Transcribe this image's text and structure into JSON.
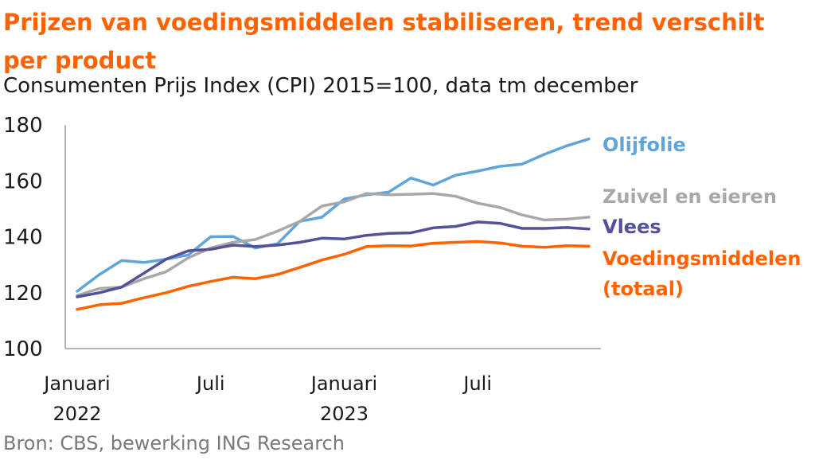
{
  "title": "Prijzen van voedingsmiddelen stabiliseren, trend verschilt per product",
  "subtitle": "Consumenten Prijs Index (CPI) 2015=100, data tm december",
  "source": "Bron: CBS, bewerking ING Research",
  "chart_data": {
    "type": "line",
    "x": [
      "2022-01",
      "2022-02",
      "2022-03",
      "2022-04",
      "2022-05",
      "2022-06",
      "2022-07",
      "2022-08",
      "2022-09",
      "2022-10",
      "2022-11",
      "2022-12",
      "2023-01",
      "2023-02",
      "2023-03",
      "2023-04",
      "2023-05",
      "2023-06",
      "2023-07",
      "2023-08",
      "2023-09",
      "2023-10",
      "2023-11",
      "2023-12"
    ],
    "x_tick_labels": [
      {
        "x": "2022-01",
        "lines": [
          "Januari",
          "2022"
        ]
      },
      {
        "x": "2022-07",
        "lines": [
          "Juli"
        ]
      },
      {
        "x": "2023-01",
        "lines": [
          "Januari",
          "2023"
        ]
      },
      {
        "x": "2023-07",
        "lines": [
          "Juli"
        ]
      }
    ],
    "ylim": [
      100,
      180
    ],
    "y_ticks": [
      100,
      120,
      140,
      160,
      180
    ],
    "grid": false,
    "legend": "direct labels at right end of lines",
    "series": [
      {
        "name": "Olijfolie",
        "color": "#60a5da",
        "values": [
          120.5,
          126.5,
          131.5,
          130.8,
          132,
          133.5,
          140,
          140.1,
          136,
          137.5,
          145.5,
          147,
          153.5,
          155,
          156,
          161,
          158.5,
          162,
          163.5,
          165.2,
          166,
          169.5,
          172.5,
          175
        ]
      },
      {
        "name": "Zuivel en eieren",
        "color": "#a8a8a8",
        "values": [
          119,
          121.5,
          122,
          125,
          127.5,
          132.5,
          136,
          138,
          139,
          142,
          145.5,
          151,
          152.5,
          155.5,
          155,
          155.2,
          155.5,
          154.5,
          152,
          150.5,
          147.8,
          146,
          146.3,
          147
        ]
      },
      {
        "name": "Vlees",
        "color": "#525199",
        "values": [
          118.5,
          120,
          122,
          127,
          132,
          135,
          135.5,
          137,
          136.5,
          137,
          138,
          139.5,
          139.2,
          140.5,
          141.2,
          141.4,
          143.2,
          143.7,
          145.3,
          144.8,
          143,
          143,
          143.3,
          142.8
        ]
      },
      {
        "name": "Voedingsmiddelen (totaal)",
        "label_lines": [
          "Voedingsmiddelen",
          "(totaal)"
        ],
        "color": "#ff6200",
        "values": [
          114,
          115.7,
          116.2,
          118.2,
          120,
          122.3,
          124,
          125.5,
          125,
          126.5,
          129,
          131.7,
          133.7,
          136.5,
          136.8,
          136.7,
          137.7,
          138,
          138.3,
          137.8,
          136.6,
          136.2,
          136.8,
          136.6
        ]
      }
    ]
  }
}
